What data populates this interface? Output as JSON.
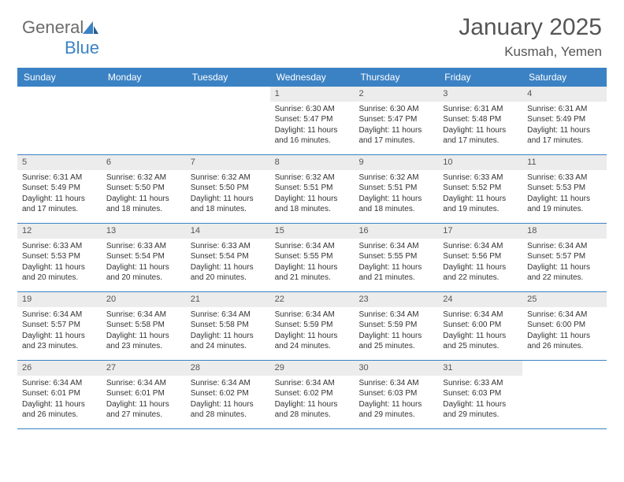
{
  "logo": {
    "text1": "General",
    "text2": "Blue"
  },
  "title": "January 2025",
  "location": "Kusmah, Yemen",
  "colors": {
    "header_bg": "#3b82c4",
    "header_text": "#ffffff",
    "daynum_bg": "#ececec",
    "border": "#3b82c4",
    "body_text": "#333333",
    "title_text": "#555555",
    "logo_gray": "#6b6b6b",
    "logo_blue": "#3b82c4",
    "background": "#ffffff"
  },
  "dayNames": [
    "Sunday",
    "Monday",
    "Tuesday",
    "Wednesday",
    "Thursday",
    "Friday",
    "Saturday"
  ],
  "weeks": [
    [
      {
        "n": "",
        "sr": "",
        "ss": "",
        "dl1": "",
        "dl2": ""
      },
      {
        "n": "",
        "sr": "",
        "ss": "",
        "dl1": "",
        "dl2": ""
      },
      {
        "n": "",
        "sr": "",
        "ss": "",
        "dl1": "",
        "dl2": ""
      },
      {
        "n": "1",
        "sr": "Sunrise: 6:30 AM",
        "ss": "Sunset: 5:47 PM",
        "dl1": "Daylight: 11 hours",
        "dl2": "and 16 minutes."
      },
      {
        "n": "2",
        "sr": "Sunrise: 6:30 AM",
        "ss": "Sunset: 5:47 PM",
        "dl1": "Daylight: 11 hours",
        "dl2": "and 17 minutes."
      },
      {
        "n": "3",
        "sr": "Sunrise: 6:31 AM",
        "ss": "Sunset: 5:48 PM",
        "dl1": "Daylight: 11 hours",
        "dl2": "and 17 minutes."
      },
      {
        "n": "4",
        "sr": "Sunrise: 6:31 AM",
        "ss": "Sunset: 5:49 PM",
        "dl1": "Daylight: 11 hours",
        "dl2": "and 17 minutes."
      }
    ],
    [
      {
        "n": "5",
        "sr": "Sunrise: 6:31 AM",
        "ss": "Sunset: 5:49 PM",
        "dl1": "Daylight: 11 hours",
        "dl2": "and 17 minutes."
      },
      {
        "n": "6",
        "sr": "Sunrise: 6:32 AM",
        "ss": "Sunset: 5:50 PM",
        "dl1": "Daylight: 11 hours",
        "dl2": "and 18 minutes."
      },
      {
        "n": "7",
        "sr": "Sunrise: 6:32 AM",
        "ss": "Sunset: 5:50 PM",
        "dl1": "Daylight: 11 hours",
        "dl2": "and 18 minutes."
      },
      {
        "n": "8",
        "sr": "Sunrise: 6:32 AM",
        "ss": "Sunset: 5:51 PM",
        "dl1": "Daylight: 11 hours",
        "dl2": "and 18 minutes."
      },
      {
        "n": "9",
        "sr": "Sunrise: 6:32 AM",
        "ss": "Sunset: 5:51 PM",
        "dl1": "Daylight: 11 hours",
        "dl2": "and 18 minutes."
      },
      {
        "n": "10",
        "sr": "Sunrise: 6:33 AM",
        "ss": "Sunset: 5:52 PM",
        "dl1": "Daylight: 11 hours",
        "dl2": "and 19 minutes."
      },
      {
        "n": "11",
        "sr": "Sunrise: 6:33 AM",
        "ss": "Sunset: 5:53 PM",
        "dl1": "Daylight: 11 hours",
        "dl2": "and 19 minutes."
      }
    ],
    [
      {
        "n": "12",
        "sr": "Sunrise: 6:33 AM",
        "ss": "Sunset: 5:53 PM",
        "dl1": "Daylight: 11 hours",
        "dl2": "and 20 minutes."
      },
      {
        "n": "13",
        "sr": "Sunrise: 6:33 AM",
        "ss": "Sunset: 5:54 PM",
        "dl1": "Daylight: 11 hours",
        "dl2": "and 20 minutes."
      },
      {
        "n": "14",
        "sr": "Sunrise: 6:33 AM",
        "ss": "Sunset: 5:54 PM",
        "dl1": "Daylight: 11 hours",
        "dl2": "and 20 minutes."
      },
      {
        "n": "15",
        "sr": "Sunrise: 6:34 AM",
        "ss": "Sunset: 5:55 PM",
        "dl1": "Daylight: 11 hours",
        "dl2": "and 21 minutes."
      },
      {
        "n": "16",
        "sr": "Sunrise: 6:34 AM",
        "ss": "Sunset: 5:55 PM",
        "dl1": "Daylight: 11 hours",
        "dl2": "and 21 minutes."
      },
      {
        "n": "17",
        "sr": "Sunrise: 6:34 AM",
        "ss": "Sunset: 5:56 PM",
        "dl1": "Daylight: 11 hours",
        "dl2": "and 22 minutes."
      },
      {
        "n": "18",
        "sr": "Sunrise: 6:34 AM",
        "ss": "Sunset: 5:57 PM",
        "dl1": "Daylight: 11 hours",
        "dl2": "and 22 minutes."
      }
    ],
    [
      {
        "n": "19",
        "sr": "Sunrise: 6:34 AM",
        "ss": "Sunset: 5:57 PM",
        "dl1": "Daylight: 11 hours",
        "dl2": "and 23 minutes."
      },
      {
        "n": "20",
        "sr": "Sunrise: 6:34 AM",
        "ss": "Sunset: 5:58 PM",
        "dl1": "Daylight: 11 hours",
        "dl2": "and 23 minutes."
      },
      {
        "n": "21",
        "sr": "Sunrise: 6:34 AM",
        "ss": "Sunset: 5:58 PM",
        "dl1": "Daylight: 11 hours",
        "dl2": "and 24 minutes."
      },
      {
        "n": "22",
        "sr": "Sunrise: 6:34 AM",
        "ss": "Sunset: 5:59 PM",
        "dl1": "Daylight: 11 hours",
        "dl2": "and 24 minutes."
      },
      {
        "n": "23",
        "sr": "Sunrise: 6:34 AM",
        "ss": "Sunset: 5:59 PM",
        "dl1": "Daylight: 11 hours",
        "dl2": "and 25 minutes."
      },
      {
        "n": "24",
        "sr": "Sunrise: 6:34 AM",
        "ss": "Sunset: 6:00 PM",
        "dl1": "Daylight: 11 hours",
        "dl2": "and 25 minutes."
      },
      {
        "n": "25",
        "sr": "Sunrise: 6:34 AM",
        "ss": "Sunset: 6:00 PM",
        "dl1": "Daylight: 11 hours",
        "dl2": "and 26 minutes."
      }
    ],
    [
      {
        "n": "26",
        "sr": "Sunrise: 6:34 AM",
        "ss": "Sunset: 6:01 PM",
        "dl1": "Daylight: 11 hours",
        "dl2": "and 26 minutes."
      },
      {
        "n": "27",
        "sr": "Sunrise: 6:34 AM",
        "ss": "Sunset: 6:01 PM",
        "dl1": "Daylight: 11 hours",
        "dl2": "and 27 minutes."
      },
      {
        "n": "28",
        "sr": "Sunrise: 6:34 AM",
        "ss": "Sunset: 6:02 PM",
        "dl1": "Daylight: 11 hours",
        "dl2": "and 28 minutes."
      },
      {
        "n": "29",
        "sr": "Sunrise: 6:34 AM",
        "ss": "Sunset: 6:02 PM",
        "dl1": "Daylight: 11 hours",
        "dl2": "and 28 minutes."
      },
      {
        "n": "30",
        "sr": "Sunrise: 6:34 AM",
        "ss": "Sunset: 6:03 PM",
        "dl1": "Daylight: 11 hours",
        "dl2": "and 29 minutes."
      },
      {
        "n": "31",
        "sr": "Sunrise: 6:33 AM",
        "ss": "Sunset: 6:03 PM",
        "dl1": "Daylight: 11 hours",
        "dl2": "and 29 minutes."
      },
      {
        "n": "",
        "sr": "",
        "ss": "",
        "dl1": "",
        "dl2": ""
      }
    ]
  ]
}
